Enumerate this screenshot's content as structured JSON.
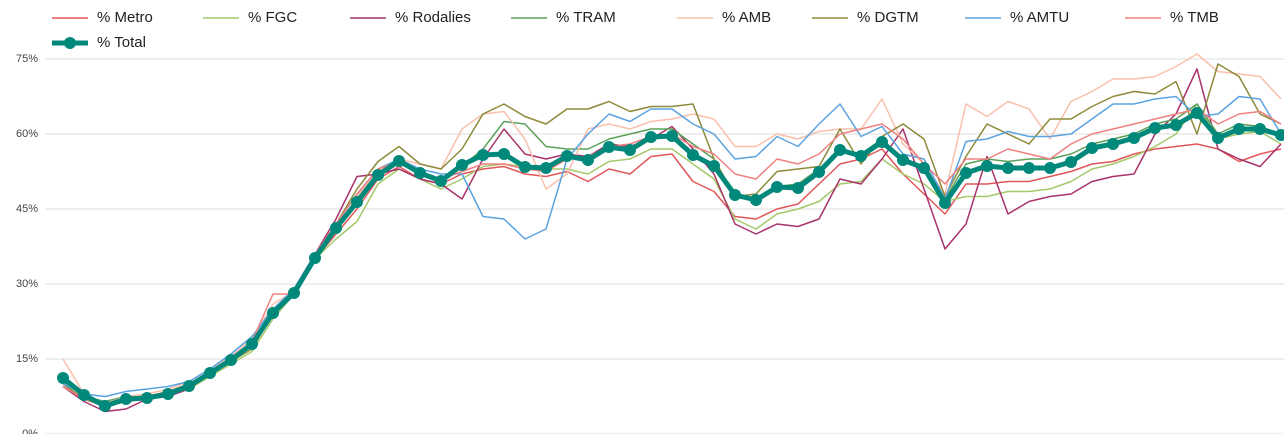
{
  "chart_data": {
    "type": "line",
    "categories": [
      null,
      null,
      null,
      null,
      null,
      null,
      null,
      null,
      null,
      null,
      null,
      null,
      null,
      null,
      null,
      null,
      null,
      null,
      null,
      null,
      null,
      null,
      null,
      null,
      null,
      null,
      null,
      null,
      null,
      null,
      null,
      null,
      null,
      null,
      null,
      null,
      null,
      null,
      null,
      null,
      null,
      null,
      null,
      null,
      null,
      null,
      null,
      null,
      null,
      null,
      null,
      null,
      null,
      null,
      null,
      null,
      null,
      null,
      null
    ],
    "ylim": [
      0,
      75
    ],
    "yticks": [
      {
        "value": 0,
        "label": "0%"
      },
      {
        "value": 15,
        "label": "15%"
      },
      {
        "value": 30,
        "label": "30%"
      },
      {
        "value": 45,
        "label": "45%"
      },
      {
        "value": 60,
        "label": "60%"
      },
      {
        "value": 75,
        "label": "75%"
      }
    ],
    "grid": true,
    "legend": "top",
    "series": [
      {
        "name": "% Metro",
        "color": "#e15759",
        "values": [
          10,
          7,
          5.5,
          6.5,
          7,
          8,
          9.5,
          12,
          15,
          18,
          24,
          28,
          35,
          40,
          45,
          51,
          53.5,
          51,
          50,
          52,
          53,
          53.5,
          52,
          51.5,
          52.5,
          50.5,
          53,
          52,
          55.5,
          56,
          50.5,
          48.5,
          43.5,
          43,
          45,
          46,
          50,
          54,
          55,
          57,
          52,
          48,
          44,
          50,
          50,
          50.5,
          50.5,
          51.5,
          52.5,
          54,
          54.5,
          56,
          57,
          57.5,
          58,
          57,
          54.5,
          56,
          57
        ]
      },
      {
        "name": "% FGC",
        "color": "#a4c96a",
        "values": [
          11,
          7.5,
          6,
          7,
          7.5,
          8,
          9,
          11.5,
          14,
          16.5,
          23,
          28,
          35,
          39,
          42.5,
          50,
          53,
          51,
          49,
          51,
          53.5,
          54,
          53.5,
          53,
          53,
          52,
          54.5,
          55,
          57,
          57,
          54,
          51,
          43,
          41,
          44,
          45,
          46.5,
          50,
          50.5,
          55,
          52,
          50,
          46.5,
          47.5,
          47.5,
          48.5,
          48.5,
          49,
          50.5,
          53,
          54,
          55.5,
          57.5,
          60,
          66,
          59,
          60,
          60.5,
          58
        ]
      },
      {
        "name": "% Rodalies",
        "color": "#a8336b",
        "values": [
          9.5,
          6.5,
          4.5,
          5,
          7,
          7.5,
          9,
          12,
          14.5,
          18,
          24,
          29,
          36,
          43,
          51.5,
          52,
          53,
          51,
          50,
          47,
          55,
          61,
          56,
          55,
          56,
          55.5,
          58,
          57.5,
          59,
          61.5,
          57,
          52,
          42,
          40,
          42,
          41.5,
          43,
          51,
          50,
          55,
          61,
          49,
          37,
          42,
          55.5,
          44,
          46.5,
          47.5,
          48,
          50.5,
          51.5,
          52,
          60,
          64,
          73,
          57,
          55,
          53.5,
          58
        ]
      },
      {
        "name": "% TRAM",
        "color": "#5aa05a",
        "values": [
          10.5,
          7.5,
          6.5,
          7.5,
          7.5,
          8.5,
          10,
          12.5,
          15,
          18,
          24.5,
          29,
          35.5,
          41.5,
          47,
          52.5,
          54,
          52.5,
          51,
          53.5,
          57,
          62.5,
          62,
          57.5,
          57,
          57,
          59,
          60,
          61,
          61,
          58,
          55,
          47.5,
          46.5,
          49.5,
          50,
          53,
          57,
          56,
          59,
          55,
          53,
          47,
          54,
          55,
          54.5,
          55,
          55,
          56,
          58,
          59,
          60,
          62,
          63,
          66,
          60,
          62,
          61.5,
          60
        ]
      },
      {
        "name": "% AMB",
        "color": "#f9c0ac",
        "values": [
          15,
          8,
          6,
          7.5,
          8,
          9,
          10.5,
          13,
          15.5,
          19,
          26,
          28.5,
          35,
          41,
          47.5,
          52.5,
          55,
          54,
          53,
          61,
          64,
          64.5,
          59,
          49,
          52,
          61,
          62,
          61,
          62.5,
          63,
          64,
          63,
          57.5,
          57.5,
          60,
          59,
          60.5,
          61,
          61,
          67,
          58,
          54,
          48,
          66,
          63.5,
          66.5,
          65,
          59,
          66.5,
          68.5,
          71,
          71,
          71.5,
          73.5,
          76,
          72.5,
          72,
          71.5,
          67
        ]
      },
      {
        "name": "% DGTM",
        "color": "#8d8a3a",
        "values": [
          10,
          7,
          5.5,
          6.5,
          7.5,
          8,
          9,
          12,
          14.5,
          17,
          24,
          28.5,
          35.5,
          42,
          49,
          54.5,
          57.5,
          54,
          53,
          57,
          64,
          66,
          63.5,
          62,
          65,
          65,
          66.5,
          64.5,
          65.5,
          65.5,
          66,
          55,
          47.5,
          48,
          52.5,
          53,
          53.5,
          61,
          54,
          59.5,
          62,
          59,
          47.5,
          55.5,
          62,
          60,
          58,
          63,
          63,
          65.5,
          67.5,
          68.5,
          68,
          70.5,
          60,
          74,
          71.5,
          64,
          62
        ]
      },
      {
        "name": "% AMTU",
        "color": "#5ba3e0",
        "values": [
          10,
          8,
          7.5,
          8.5,
          9,
          9.5,
          10.5,
          13,
          16,
          19.5,
          25,
          29,
          36,
          42,
          48,
          53,
          55,
          53,
          52,
          52,
          43.5,
          43,
          39,
          41,
          55,
          60,
          64,
          62.5,
          65,
          65,
          62,
          60,
          55,
          55.5,
          59.5,
          57.5,
          62,
          66,
          59.5,
          61.5,
          56,
          55,
          47,
          58.5,
          59,
          60.5,
          59.5,
          59.5,
          60,
          63,
          66,
          66,
          67,
          67.5,
          63.5,
          64,
          67.5,
          67,
          60
        ]
      },
      {
        "name": "% TMB",
        "color": "#f08080",
        "values": [
          9.5,
          7,
          6,
          7,
          7.5,
          8.5,
          10,
          12.5,
          15,
          18.5,
          28,
          28,
          36,
          42,
          48,
          53,
          54.5,
          52,
          51,
          52.5,
          54,
          54,
          53,
          52.5,
          55,
          55.5,
          57.5,
          58,
          59.5,
          60,
          57.5,
          56,
          52,
          51,
          55,
          54,
          56,
          60,
          61,
          62,
          59,
          54,
          50,
          55,
          55,
          57,
          56,
          55,
          58,
          60,
          61,
          62,
          63,
          64,
          65,
          62,
          64,
          64.5,
          62
        ]
      },
      {
        "name": "% Total",
        "color": "#00897b",
        "values": [
          11.2,
          7.8,
          5.6,
          7,
          7.2,
          8,
          9.6,
          12.2,
          14.8,
          18,
          24.2,
          28.2,
          35.2,
          41.2,
          46.4,
          51.8,
          54.6,
          52.2,
          50.6,
          53.8,
          55.8,
          56,
          53.4,
          53.2,
          55.6,
          54.8,
          57.4,
          56.8,
          59.4,
          59.6,
          55.8,
          53.6,
          47.8,
          46.8,
          49.4,
          49.2,
          52.4,
          56.8,
          55.6,
          58.4,
          54.8,
          53.2,
          46.2,
          52.2,
          53.6,
          53.2,
          53.2,
          53.2,
          54.4,
          57.2,
          58,
          59.2,
          61.2,
          61.8,
          64.2,
          59.2,
          61,
          61,
          59.8
        ]
      }
    ]
  }
}
